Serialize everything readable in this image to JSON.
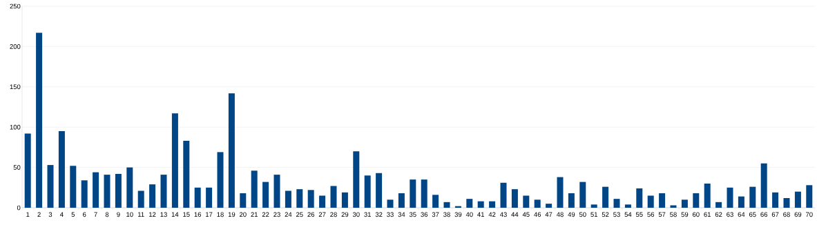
{
  "chart_data": {
    "type": "bar",
    "color": "#004586",
    "grid": "y",
    "categories": [
      "1",
      "2",
      "3",
      "4",
      "5",
      "6",
      "7",
      "8",
      "9",
      "10",
      "11",
      "12",
      "13",
      "14",
      "15",
      "16",
      "17",
      "18",
      "19",
      "20",
      "21",
      "22",
      "23",
      "24",
      "25",
      "26",
      "27",
      "28",
      "29",
      "30",
      "31",
      "32",
      "33",
      "34",
      "35",
      "36",
      "37",
      "38",
      "39",
      "40",
      "41",
      "42",
      "43",
      "44",
      "45",
      "46",
      "47",
      "48",
      "49",
      "50",
      "51",
      "52",
      "53",
      "54",
      "55",
      "56",
      "57",
      "58",
      "59",
      "60",
      "61",
      "62",
      "63",
      "64",
      "65",
      "66",
      "67",
      "68",
      "69",
      "70"
    ],
    "values": [
      92,
      217,
      53,
      95,
      52,
      34,
      44,
      41,
      42,
      50,
      21,
      29,
      41,
      117,
      83,
      25,
      25,
      69,
      142,
      18,
      46,
      32,
      41,
      21,
      23,
      22,
      15,
      27,
      19,
      70,
      40,
      43,
      10,
      18,
      35,
      35,
      16,
      7,
      2,
      11,
      8,
      8,
      31,
      23,
      15,
      10,
      5,
      38,
      18,
      32,
      4,
      26,
      11,
      4,
      24,
      15,
      18,
      3,
      10,
      18,
      30,
      7,
      25,
      14,
      26,
      55,
      19,
      12,
      20,
      28
    ],
    "ylim": [
      0,
      250
    ],
    "yticks": [
      0,
      50,
      100,
      150,
      200,
      250
    ]
  }
}
